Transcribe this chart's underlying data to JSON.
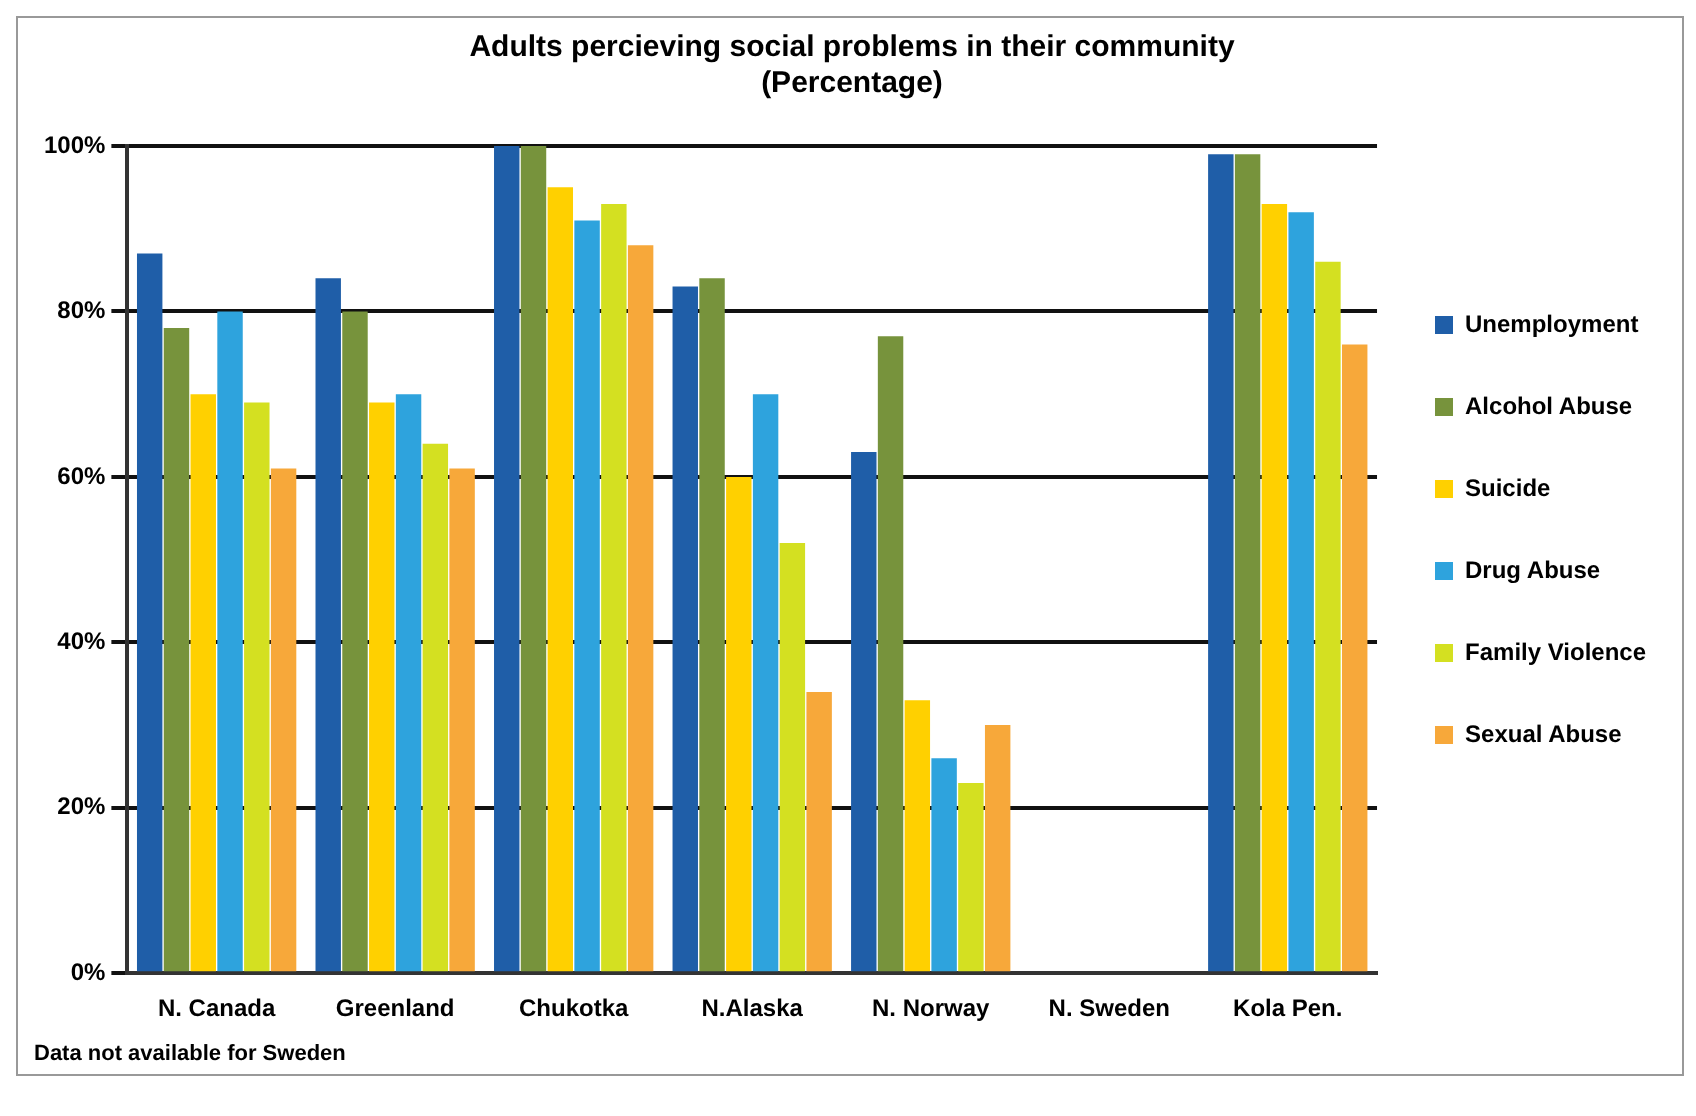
{
  "chart_data": {
    "type": "bar",
    "title": [
      "Adults percieving social problems in their community",
      "(Percentage)"
    ],
    "categories": [
      "N. Canada",
      "Greenland",
      "Chukotka",
      "N.Alaska",
      "N. Norway",
      "N. Sweden",
      "Kola Pen."
    ],
    "series": [
      {
        "name": "Unemployment",
        "color": "#1f5ea8",
        "values": [
          87,
          84,
          100,
          83,
          63,
          null,
          99
        ]
      },
      {
        "name": "Alcohol Abuse",
        "color": "#77933c",
        "values": [
          78,
          80,
          100,
          84,
          77,
          null,
          99
        ]
      },
      {
        "name": "Suicide",
        "color": "#ffd000",
        "values": [
          70,
          69,
          95,
          60,
          33,
          null,
          93
        ]
      },
      {
        "name": "Drug Abuse",
        "color": "#2ea3dd",
        "values": [
          80,
          70,
          91,
          70,
          26,
          null,
          92
        ]
      },
      {
        "name": "Family Violence",
        "color": "#d4e021",
        "values": [
          69,
          64,
          93,
          52,
          23,
          null,
          86
        ]
      },
      {
        "name": "Sexual Abuse",
        "color": "#f7a83a",
        "values": [
          61,
          61,
          88,
          34,
          30,
          null,
          76
        ]
      }
    ],
    "ylim": [
      0,
      100
    ],
    "yticks": [
      {
        "value": 0,
        "label": "0%"
      },
      {
        "value": 20,
        "label": "20%"
      },
      {
        "value": 40,
        "label": "40%"
      },
      {
        "value": 60,
        "label": "60%"
      },
      {
        "value": 80,
        "label": "80%"
      },
      {
        "value": 100,
        "label": "100%"
      }
    ],
    "grid": "y",
    "legend": "right",
    "annotations": [
      "Data not available for Sweden"
    ]
  }
}
